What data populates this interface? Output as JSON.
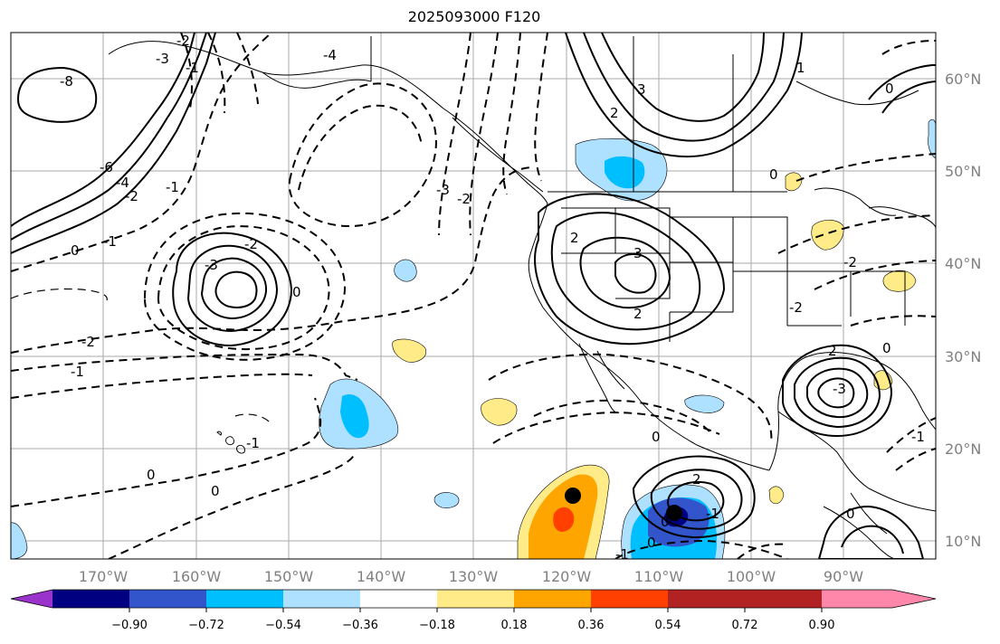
{
  "title": "2025093000 F120",
  "latitude_labels": [
    "60°N",
    "50°N",
    "40°N",
    "30°N",
    "20°N",
    "10°N"
  ],
  "longitude_labels": [
    "170°W",
    "160°W",
    "150°W",
    "140°W",
    "130°W",
    "120°W",
    "110°W",
    "100°W",
    "90°W"
  ],
  "colorbar": {
    "colors": [
      "#9933cc",
      "#000080",
      "#3355cc",
      "#00bfff",
      "#aee0ff",
      "#ffffff",
      "#ffeb88",
      "#ffa500",
      "#ff4000",
      "#b22222",
      "#ff88aa"
    ],
    "tick_labels": [
      "−0.90",
      "−0.72",
      "−0.54",
      "−0.36",
      "−0.18",
      "0.18",
      "0.36",
      "0.54",
      "0.72",
      "0.90"
    ]
  },
  "contour_labels": {
    "c1": "-4",
    "c2": "-3",
    "c3": "-3",
    "c4": "-2",
    "c5": "-2",
    "c6": "-1",
    "c7": "-1",
    "c8": "0",
    "c9": "0",
    "c10": "-1",
    "c11": "0",
    "c12": "3",
    "c13": "2",
    "c14": "2",
    "c15": "3",
    "c16": "2",
    "c17": "2",
    "c18": "-1",
    "c19": "0",
    "c20": "1",
    "c21": "0",
    "c22": "0",
    "c23": "2",
    "c24": "-8",
    "c25": "-6",
    "c26": "-4",
    "c27": "-2",
    "c28": "-1",
    "c29": "0",
    "c30": "-1",
    "c31": "-2",
    "c32": "-3",
    "c33": "-2",
    "c34": "-1",
    "c35": "0",
    "c36": "-2",
    "c37": "-2",
    "c38": "-3",
    "c39": "-1",
    "c40": "0",
    "c41": "0",
    "c42": "0"
  },
  "colors": {
    "ocean": "#ffffff",
    "grid": "#aaaaaa",
    "coast": "#000000"
  }
}
